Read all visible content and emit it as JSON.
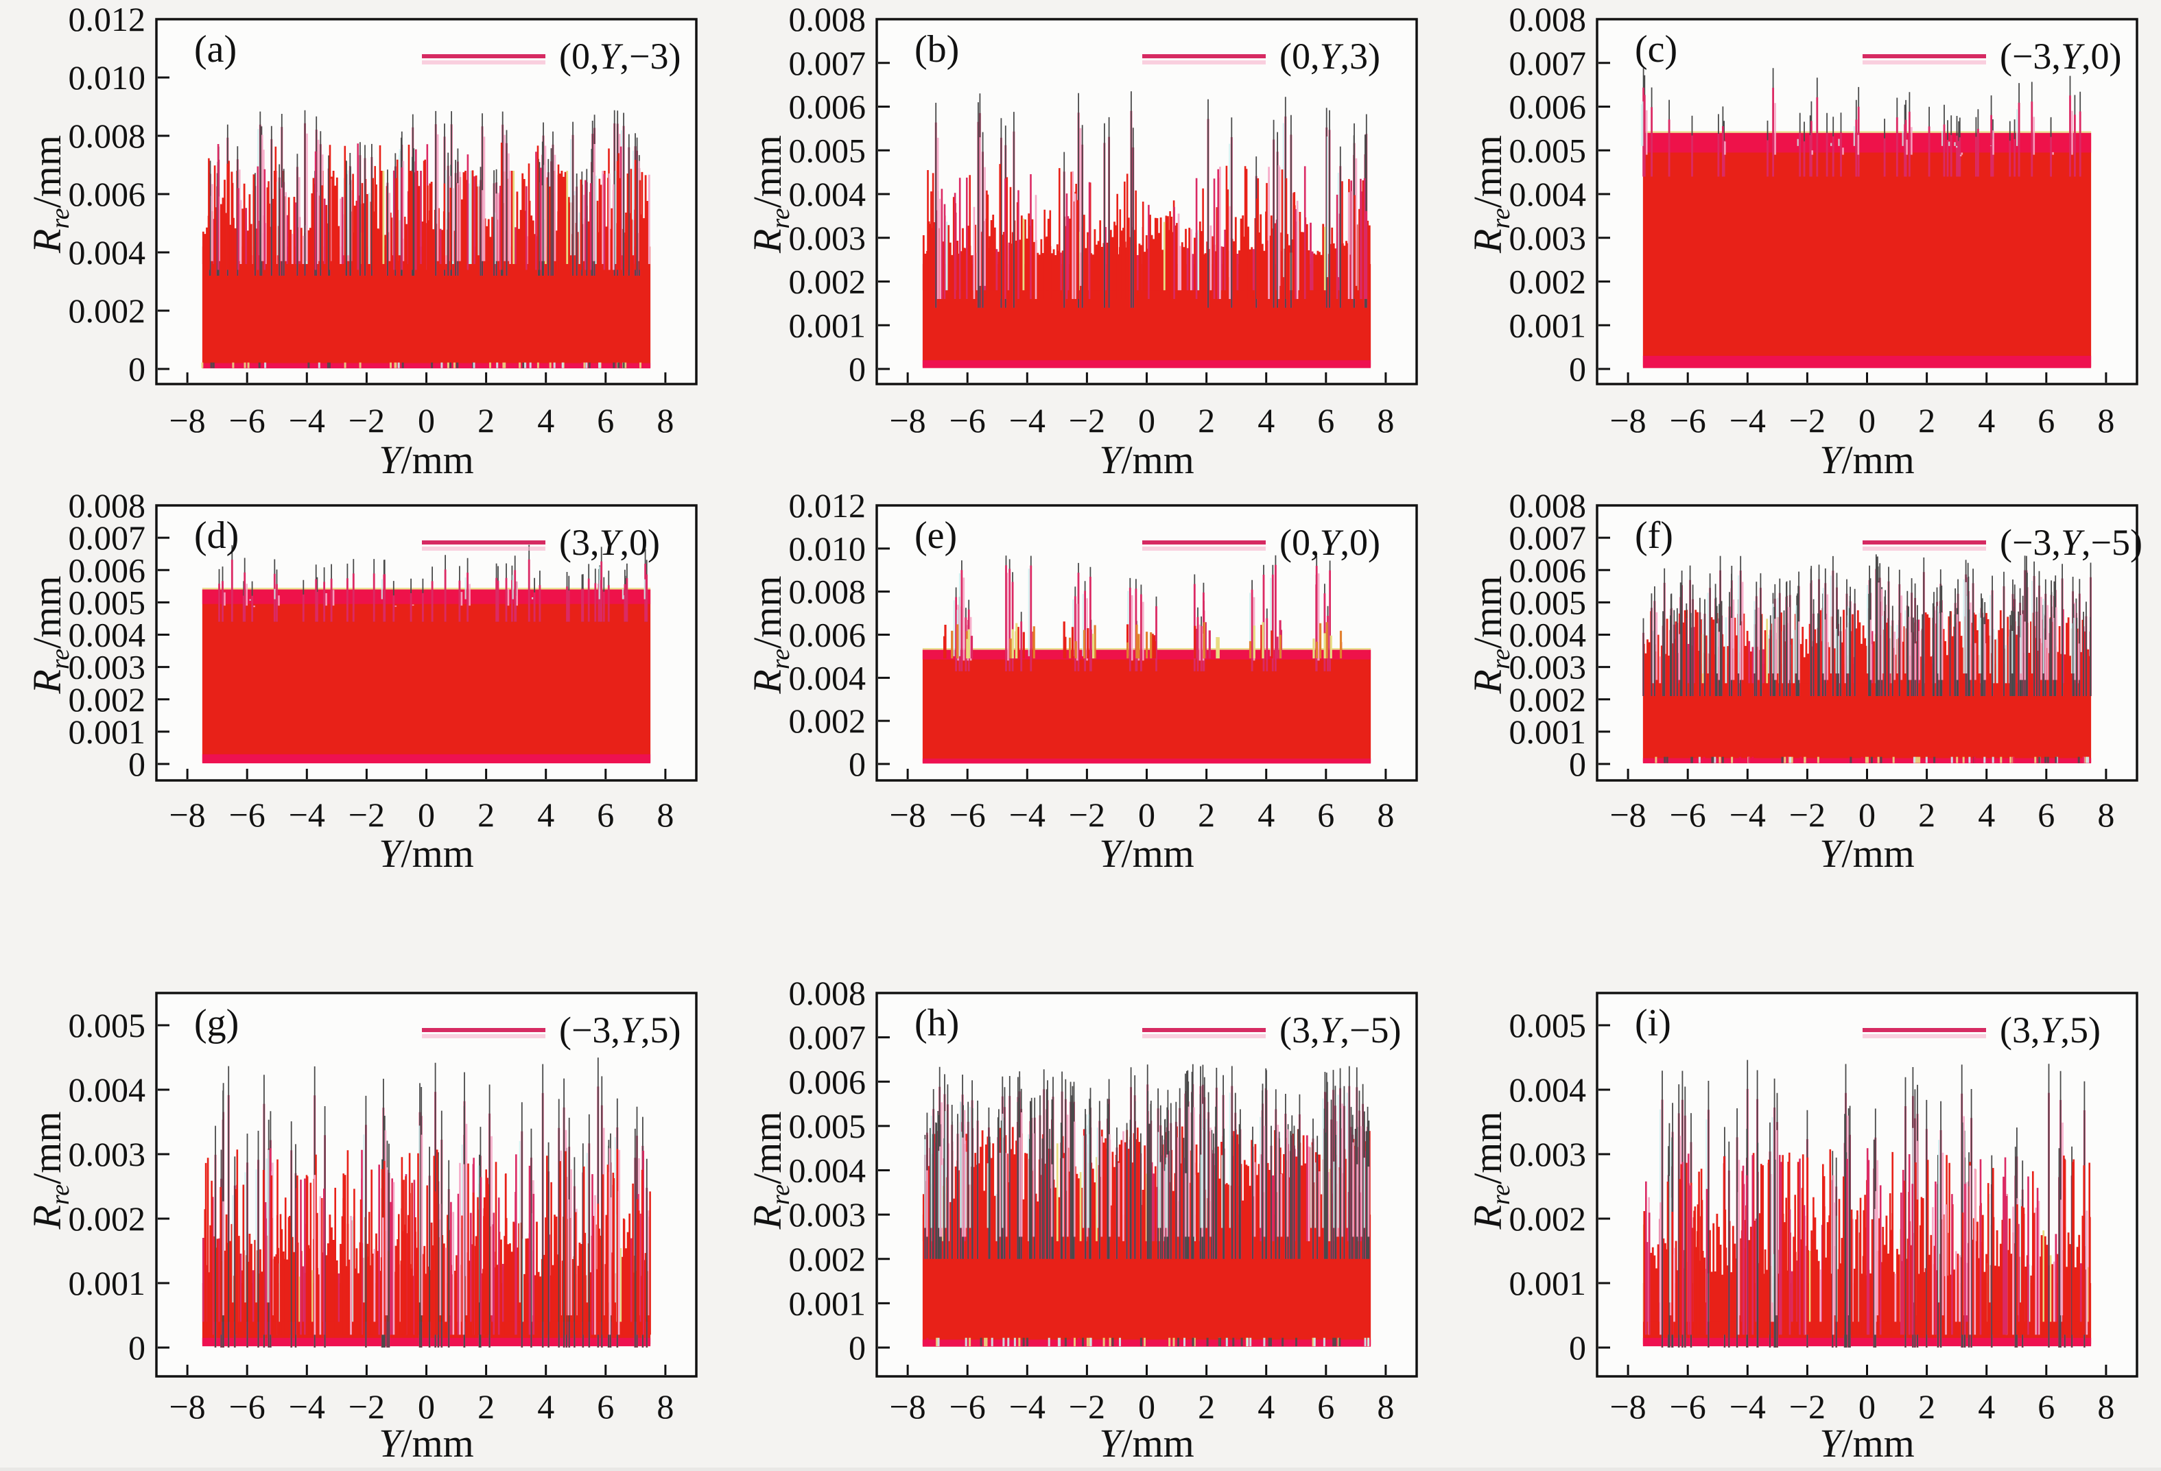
{
  "figure": {
    "background": "#f4f3f1",
    "plot_background": "#fcfcfb",
    "frame_color": "#111111",
    "palette": {
      "red": "#e82118",
      "crimson_band": "#ee1150",
      "spike_crimson": "#db2a64",
      "pink": "#f6aac8",
      "dark": "#4a4a4a",
      "yellow": "#e8dc82",
      "orange": "#e2812f",
      "cyan": "#cdeeee",
      "legend_line": "#d62a62",
      "legend_shadow": "#f8b8d0"
    },
    "x_axis": {
      "label": "Y/mm",
      "label_var": "Y",
      "label_rest": "/mm",
      "ticks": [
        -8,
        -6,
        -4,
        -2,
        0,
        2,
        4,
        6,
        8
      ],
      "tick_labels": [
        "−8",
        "−6",
        "−4",
        "−2",
        "0",
        "2",
        "4",
        "6",
        "8"
      ],
      "data_range": [
        -7.5,
        7.5
      ]
    },
    "y_axis": {
      "label": "Rre/mm",
      "label_var": "R",
      "label_sub": "re",
      "label_rest": "/mm"
    }
  },
  "chart_data": [
    {
      "id": "a",
      "label": "(a)",
      "legend": "(0,Y,−3)",
      "type": "area",
      "xlabel": "Y/mm",
      "ylabel": "Rre/mm",
      "x_data_range": [
        -7.5,
        7.5
      ],
      "ylim": [
        -0.0005,
        0.012
      ],
      "ymax_top": 0.012,
      "y_ticks": [
        0,
        0.002,
        0.004,
        0.006,
        0.008,
        0.01,
        0.012
      ],
      "y_tick_labels": [
        "0",
        "0.002",
        "0.004",
        "0.006",
        "0.008",
        "0.010",
        "0.012"
      ],
      "seed": 11,
      "pattern": {
        "kind": "noise",
        "solid_top": 0.0042,
        "band": [
          0.0044,
          0.0068
        ],
        "col_pow": 0.85,
        "period": 1.55,
        "phase": -6.8,
        "spikes": {
          "style": "cluster",
          "centers_start": -6.8,
          "centers_step": 1.51,
          "count": 10,
          "per": 7,
          "spread": 0.55,
          "min": 0.0066,
          "max": 0.0088,
          "pow": 1.2
        },
        "scatter_extra": {
          "n": 70,
          "min": 0.0062,
          "max": 0.0078
        },
        "speckles": 60,
        "bottom_strip": 0.0002
      }
    },
    {
      "id": "b",
      "label": "(b)",
      "legend": "(0,Y,3)",
      "type": "area",
      "xlabel": "Y/mm",
      "ylabel": "Rre/mm",
      "x_data_range": [
        -7.5,
        7.5
      ],
      "ylim": [
        -0.0005,
        0.008
      ],
      "ymax_top": 0.008,
      "y_ticks": [
        0,
        0.001,
        0.002,
        0.003,
        0.004,
        0.005,
        0.006,
        0.007,
        0.008
      ],
      "y_tick_labels": [
        "0",
        "0.001",
        "0.002",
        "0.003",
        "0.004",
        "0.005",
        "0.006",
        "0.007",
        "0.008"
      ],
      "seed": 22,
      "pattern": {
        "kind": "noise",
        "solid_top": 0.0024,
        "band": [
          0.0026,
          0.0036
        ],
        "col_pow": 1.3,
        "spikes": {
          "style": "scatter",
          "n": 28,
          "min": 0.0047,
          "max": 0.0063,
          "pow": 0.9
        },
        "scatter_extra": {
          "n": 90,
          "min": 0.0036,
          "max": 0.0047
        },
        "speckles": 0,
        "bottom_strip": 0.0002
      }
    },
    {
      "id": "c",
      "label": "(c)",
      "legend": "(−3,Y,0)",
      "type": "area",
      "xlabel": "Y/mm",
      "ylabel": "Rre/mm",
      "x_data_range": [
        -7.5,
        7.5
      ],
      "ylim": [
        -0.0005,
        0.008
      ],
      "ymax_top": 0.008,
      "y_ticks": [
        0,
        0.001,
        0.002,
        0.003,
        0.004,
        0.005,
        0.006,
        0.007,
        0.008
      ],
      "y_tick_labels": [
        "0",
        "0.001",
        "0.002",
        "0.003",
        "0.004",
        "0.005",
        "0.006",
        "0.007",
        "0.008"
      ],
      "seed": 33,
      "pattern": {
        "kind": "solid",
        "solid_top": 0.0054,
        "top_band": 0.00045,
        "yellow_hairline": true,
        "spikes": {
          "style": "scatter",
          "n": 46,
          "min": 0.00555,
          "max": 0.0068,
          "pow": 1.5
        },
        "bottom_strip": 0.0003
      }
    },
    {
      "id": "d",
      "label": "(d)",
      "legend": "(3,Y,0)",
      "type": "area",
      "xlabel": "Y/mm",
      "ylabel": "Rre/mm",
      "x_data_range": [
        -7.5,
        7.5
      ],
      "ylim": [
        -0.0005,
        0.008
      ],
      "ymax_top": 0.008,
      "y_ticks": [
        0,
        0.001,
        0.002,
        0.003,
        0.004,
        0.005,
        0.006,
        0.007,
        0.008
      ],
      "y_tick_labels": [
        "0",
        "0.001",
        "0.002",
        "0.003",
        "0.004",
        "0.005",
        "0.006",
        "0.007",
        "0.008"
      ],
      "seed": 44,
      "pattern": {
        "kind": "solid",
        "solid_top": 0.0054,
        "top_band": 0.00045,
        "yellow_hairline": true,
        "spikes": {
          "style": "scatter",
          "n": 50,
          "min": 0.00555,
          "max": 0.0067,
          "pow": 1.5
        },
        "bottom_strip": 0.0003
      }
    },
    {
      "id": "e",
      "label": "(e)",
      "legend": "(0,Y,0)",
      "type": "area",
      "xlabel": "Y/mm",
      "ylabel": "Rre/mm",
      "x_data_range": [
        -7.5,
        7.5
      ],
      "ylim": [
        -0.0005,
        0.012
      ],
      "ymax_top": 0.012,
      "y_ticks": [
        0,
        0.002,
        0.004,
        0.006,
        0.008,
        0.01,
        0.012
      ],
      "y_tick_labels": [
        "0",
        "0.002",
        "0.004",
        "0.006",
        "0.008",
        "0.010",
        "0.012"
      ],
      "seed": 55,
      "pattern": {
        "kind": "solid",
        "solid_top": 0.0053,
        "top_band": 0.00045,
        "yellow_hairline": true,
        "spikes": {
          "style": "cluster",
          "centers_start": -6.35,
          "centers_step": 2.06,
          "count": 7,
          "per": 5,
          "spread": 0.5,
          "min": 0.0063,
          "max": 0.0096,
          "pow": 0.85
        },
        "subspikes": {
          "per": 9,
          "spread": 0.55,
          "min": 0.0056,
          "max": 0.0067
        },
        "bottom_strip": 0.00025
      }
    },
    {
      "id": "f",
      "label": "(f)",
      "legend": "(−3,Y,−5)",
      "type": "area",
      "xlabel": "Y/mm",
      "ylabel": "Rre/mm",
      "x_data_range": [
        -7.5,
        7.5
      ],
      "ylim": [
        -0.0005,
        0.008
      ],
      "ymax_top": 0.008,
      "y_ticks": [
        0,
        0.001,
        0.002,
        0.003,
        0.004,
        0.005,
        0.006,
        0.007,
        0.008
      ],
      "y_tick_labels": [
        "0",
        "0.001",
        "0.002",
        "0.003",
        "0.004",
        "0.005",
        "0.006",
        "0.007",
        "0.008"
      ],
      "seed": 66,
      "pattern": {
        "kind": "noise",
        "solid_top": 0.0031,
        "band": [
          0.0033,
          0.0048
        ],
        "col_pow": 1.0,
        "spikes": {
          "style": "scatter",
          "n": 160,
          "min": 0.0044,
          "max": 0.0064,
          "pow": 1.3
        },
        "speckles": 70,
        "bottom_strip": 0.00018
      }
    },
    {
      "id": "g",
      "label": "(g)",
      "legend": "(−3,Y,5)",
      "type": "area",
      "xlabel": "Y/mm",
      "ylabel": "Rre/mm",
      "x_data_range": [
        -7.5,
        7.5
      ],
      "ylim": [
        -0.00045,
        0.0055
      ],
      "ymax_top": 0.0055,
      "y_ticks": [
        0,
        0.001,
        0.002,
        0.003,
        0.004,
        0.005
      ],
      "y_tick_labels": [
        "0",
        "0.001",
        "0.002",
        "0.003",
        "0.004",
        "0.005"
      ],
      "seed": 77,
      "pattern": {
        "kind": "noise",
        "solid_top": 0.001,
        "band": [
          0.0011,
          0.0021
        ],
        "col_pow": 1.1,
        "spikes": {
          "style": "scatter",
          "n": 55,
          "min": 0.0028,
          "max": 0.0044,
          "pow": 1.3
        },
        "scatter_extra": {
          "n": 130,
          "min": 0.002,
          "max": 0.0031
        },
        "speckles": 0,
        "bottom_strip": 0.00015
      }
    },
    {
      "id": "h",
      "label": "(h)",
      "legend": "(3,Y,−5)",
      "type": "area",
      "xlabel": "Y/mm",
      "ylabel": "Rre/mm",
      "x_data_range": [
        -7.5,
        7.5
      ],
      "ylim": [
        -0.0005,
        0.008
      ],
      "ymax_top": 0.008,
      "y_ticks": [
        0,
        0.001,
        0.002,
        0.003,
        0.004,
        0.005,
        0.006,
        0.007,
        0.008
      ],
      "y_tick_labels": [
        "0",
        "0.001",
        "0.002",
        "0.003",
        "0.004",
        "0.005",
        "0.006",
        "0.007",
        "0.008"
      ],
      "seed": 88,
      "pattern": {
        "kind": "noise",
        "solid_top": 0.003,
        "band": [
          0.0032,
          0.005
        ],
        "col_pow": 0.85,
        "spikes": {
          "style": "scatter",
          "n": 170,
          "min": 0.0046,
          "max": 0.0063,
          "pow": 1.2
        },
        "speckles": 70,
        "bottom_strip": 0.00018
      }
    },
    {
      "id": "i",
      "label": "(i)",
      "legend": "(3,Y,5)",
      "type": "area",
      "xlabel": "Y/mm",
      "ylabel": "Rre/mm",
      "x_data_range": [
        -7.5,
        7.5
      ],
      "ylim": [
        -0.00045,
        0.0055
      ],
      "ymax_top": 0.0055,
      "y_ticks": [
        0,
        0.001,
        0.002,
        0.003,
        0.004,
        0.005
      ],
      "y_tick_labels": [
        "0",
        "0.001",
        "0.002",
        "0.003",
        "0.004",
        "0.005"
      ],
      "seed": 99,
      "pattern": {
        "kind": "noise",
        "solid_top": 0.001,
        "band": [
          0.0011,
          0.0021
        ],
        "col_pow": 1.1,
        "spikes": {
          "style": "scatter",
          "n": 55,
          "min": 0.0028,
          "max": 0.0044,
          "pow": 1.3
        },
        "scatter_extra": {
          "n": 130,
          "min": 0.002,
          "max": 0.0031
        },
        "speckles": 0,
        "bottom_strip": 0.00015
      }
    }
  ]
}
